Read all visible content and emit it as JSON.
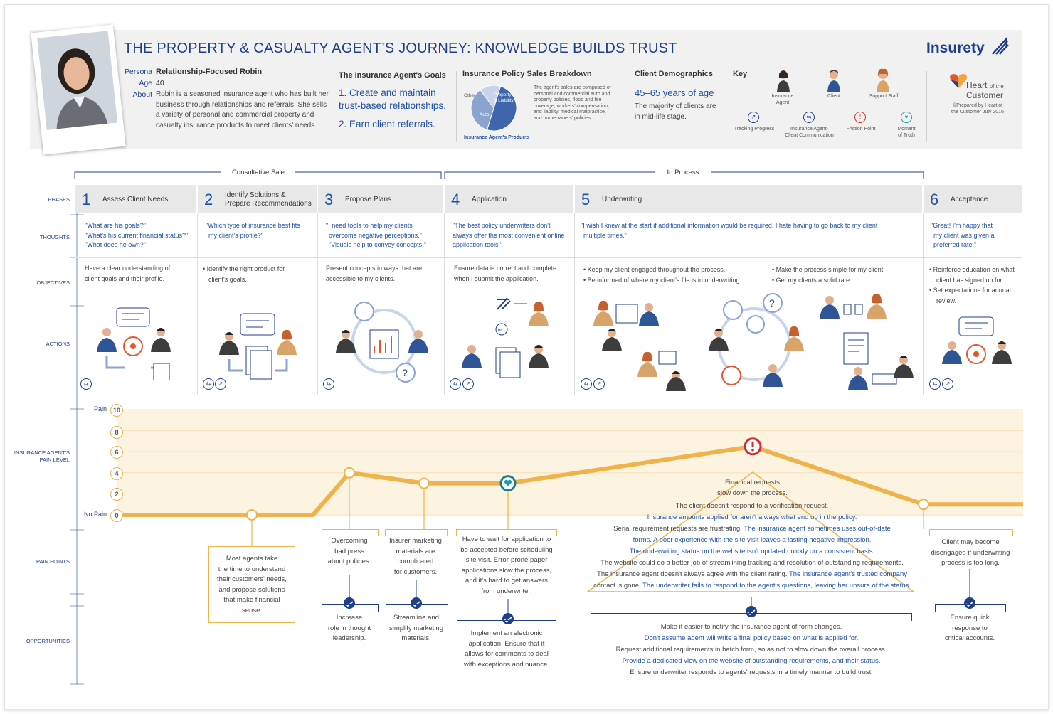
{
  "title": "THE PROPERTY & CASUALTY AGENT’S JOURNEY: KNOWLEDGE BUILDS TRUST",
  "brand": {
    "name": "Insurety",
    "accent": "#1f3f8a",
    "pain_color": "#f0b24a"
  },
  "persona": {
    "persona_label": "Persona",
    "name": "Relationship-Focused Robin",
    "age_label": "Age",
    "age": "40",
    "about_label": "About",
    "about_lines": [
      "Robin is a seasoned insurance agent who has built her",
      "business through relationships and referrals. She sells",
      "a variety of personal and commercial property and",
      "casualty insurance products to meet clients' needs."
    ]
  },
  "goals": {
    "heading": "The Insurance Agent's Goals",
    "goal1a": "1. Create and maintain",
    "goal1b": "trust-based relationships.",
    "goal2": "2. Earn client referrals."
  },
  "breakdown": {
    "heading": "Insurance Policy Sales Breakdown",
    "pie_labels": {
      "other": "Other",
      "property_a": "Property",
      "property_b": "& Liability",
      "auto": "Auto"
    },
    "pie_caption": "Insurance Agent's Products",
    "slices": [
      {
        "name": "Property & Liability",
        "value": 50,
        "color": "#3f65ad"
      },
      {
        "name": "Auto",
        "value": 35,
        "color": "#8aa3cf"
      },
      {
        "name": "Other",
        "value": 15,
        "color": "#c8d4ea"
      }
    ],
    "note_lines": [
      "The agent's sales are comprised of",
      "personal and commercial auto and",
      "property policies, flood and fire",
      "coverage, workers' compensation,",
      "and liability, medical malpractice,",
      "and homeowners' policies."
    ]
  },
  "demographics": {
    "heading": "Client Demographics",
    "age_range": "45–65 years of age",
    "note1": "The majority of clients are",
    "note2": "in mid-life stage."
  },
  "key": {
    "heading": "Key",
    "agent_a": "Insurance",
    "agent_b": "Agent",
    "client": "Client",
    "support": "Support Staff",
    "tracking": "Tracking Progress",
    "comm_a": "Insurance Agent-",
    "comm_b": "Client Communication",
    "friction": "Friction Point",
    "moment_a": "Moment",
    "moment_b": "of Truth"
  },
  "hotc": {
    "line1": "Heart",
    "line1b": "of the",
    "line2": "Customer",
    "prep1": "©Prepared by Heart of",
    "prep2": "the Customer July 2016"
  },
  "stages": {
    "consultative": "Consultative Sale",
    "in_process": "In Process"
  },
  "row_labels": {
    "phases": "PHASES",
    "thoughts": "THOUGHTS",
    "objectives": "OBJECTIVES",
    "actions": "ACTIONS",
    "pain_a": "INSURANCE AGENT'S",
    "pain_b": "PAIN LEVEL",
    "pain_points": "PAIN POINTS",
    "opportunities": "OPPORTUNITIES"
  },
  "phases": [
    {
      "num": "1",
      "name": "Assess Client Needs"
    },
    {
      "num": "2",
      "name_a": "Identify Solutions &",
      "name_b": "Prepare Recommendations"
    },
    {
      "num": "3",
      "name": "Propose Plans"
    },
    {
      "num": "4",
      "name": "Application"
    },
    {
      "num": "5",
      "name": "Underwriting"
    },
    {
      "num": "6",
      "name": "Acceptance"
    }
  ],
  "thoughts": [
    [
      "\"What are his goals?\"",
      "\"What's his current financial status?\"",
      "\"What does he own?\""
    ],
    [
      "\"Which type of insurance best fits",
      "my client's profile?\""
    ],
    [
      "\"I need tools to help my clients",
      "overcome negative perceptions.\"",
      "\"Visuals help to convey concepts.\""
    ],
    [
      "\"The best policy underwriters don't",
      "always offer the most convenient online",
      "application tools.\""
    ],
    [
      "\"I wish I knew at the start if additional information would be required. I hate having to go back to my client",
      "multiple times.\""
    ],
    [
      "\"Great! I'm happy that",
      "my client was given a",
      "preferred rate.\""
    ]
  ],
  "objectives": [
    [
      "Have a clear understanding of",
      "client goals and their profile."
    ],
    [
      "•  Identify the right product for",
      "client's goals."
    ],
    [
      "Present concepts in ways that are",
      "accessible to my clients."
    ],
    [
      "Ensure data is correct and complete",
      "when I submit the application."
    ],
    [
      "•  Keep my client engaged throughout the process.",
      "•  Be informed of where my client's file is in underwriting."
    ],
    [
      "•  Make the process simple for my client.",
      "•  Get my clients a solid rate."
    ],
    [
      "•  Reinforce education on what",
      "client has signed up for.",
      "•  Set expectations for annual",
      "review."
    ]
  ],
  "pain_axis": {
    "pain_label": "Pain",
    "no_pain_label": "No Pain",
    "ticks": [
      "10",
      "8",
      "6",
      "4",
      "2",
      "0"
    ],
    "ylim": [
      0,
      10
    ]
  },
  "chart_data": {
    "type": "line",
    "title": "Insurance Agent's Pain Level",
    "x": [
      "1 Assess Client Needs",
      "2 Identify Solutions & Prepare Recommendations",
      "3 Propose Plans",
      "3 Propose Plans (late)",
      "4 Application",
      "5 Underwriting",
      "6 Acceptance"
    ],
    "values": [
      0,
      0,
      4,
      3,
      3,
      6.5,
      1
    ],
    "ylabel": "Pain Level",
    "ylim": [
      0,
      10
    ]
  },
  "pain_points": {
    "p1": [
      "Most agents take",
      "the time to understand",
      "their customers' needs,",
      "and propose solutions",
      "that make financial",
      "sense."
    ],
    "p2": [
      "Overcoming",
      "bad press",
      "about policies."
    ],
    "p3": [
      "Insurer marketing",
      "materials are",
      "complicated",
      "for customers."
    ],
    "p4": [
      "Have to wait for application to",
      "be accepted before scheduling",
      "site visit. Error-prone paper",
      "applications slow the process,",
      "and it's hard to get answers",
      "from underwriter."
    ],
    "p5_top": [
      "Financial requests",
      "slow down the process."
    ],
    "p5": [
      {
        "a": "The client doesn't respond to a verification request.",
        "b": ""
      },
      {
        "a": "",
        "b": "Insurance amounts applied for aren't always what end up in the policy."
      },
      {
        "a": "Serial requirement requests are frustrating. ",
        "b": "The insurance agent sometimes uses out-of-date"
      },
      {
        "a": "",
        "b": "forms. A poor experience with the site visit leaves a lasting negative impression."
      },
      {
        "a": "",
        "b": "The underwriting status on the website isn't updated quickly on a consistent basis."
      },
      {
        "a": "The website could do a better job of streamlining tracking and resolution of outstanding requirements.",
        "b": ""
      },
      {
        "a": "The insurance agent doesn't always agree with the client rating. ",
        "b": "The insurance agent's trusted company"
      },
      {
        "a": "contact is gone. ",
        "b": "The underwriter fails to respond to the agent's questions, leaving her unsure of the status."
      }
    ],
    "p6": [
      "Client may become",
      "disengaged if underwriting",
      "process is too long."
    ]
  },
  "opportunities": {
    "o2": [
      "Increase",
      "role in thought",
      "leadership."
    ],
    "o3": [
      "Streamline and",
      "simplify marketing",
      "materials."
    ],
    "o4": [
      "Implement an electronic",
      "application. Ensure that it",
      "allows for comments to deal",
      "with exceptions and nuance."
    ],
    "o5": [
      {
        "t": "Make it easier to notify the insurance agent of form changes.",
        "c": "g"
      },
      {
        "t": "Don't assume agent will write a final policy based on what is applied for.",
        "c": "b"
      },
      {
        "t": "Request additional requirements in batch form, so as not to slow down the overall process.",
        "c": "g"
      },
      {
        "t": "Provide a dedicated view on the website of outstanding requirements, and their status.",
        "c": "b"
      },
      {
        "t": "Ensure underwriter responds to agents' requests in a timely manner to build trust.",
        "c": "g"
      }
    ],
    "o6": [
      "Ensure quick",
      "response to",
      "critical accounts."
    ]
  }
}
